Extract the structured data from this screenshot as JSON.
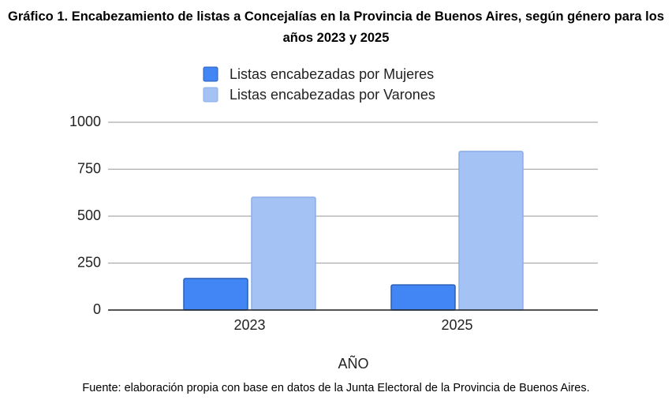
{
  "chart_data": {
    "type": "bar",
    "title": "Gráfico 1. Encabezamiento de listas a Concejalías en la Provincia de Buenos Aires, según género para los años 2023 y 2025",
    "x_label": "AÑO",
    "source": "Fuente: elaboración propia con base en datos de la Junta Electoral de la Provincia de Buenos Aires.",
    "categories": [
      "2023",
      "2025"
    ],
    "series": [
      {
        "name": "Listas encabezadas por Mujeres",
        "color": "#4285f4",
        "values": [
          168,
          134
        ]
      },
      {
        "name": "Listas encabezadas por Varones",
        "color": "#a4c2f4",
        "values": [
          601,
          845
        ]
      }
    ],
    "ylim": [
      0,
      1000
    ],
    "yticks": [
      0,
      250,
      500,
      750,
      1000
    ],
    "grid": true,
    "legend": "top"
  }
}
